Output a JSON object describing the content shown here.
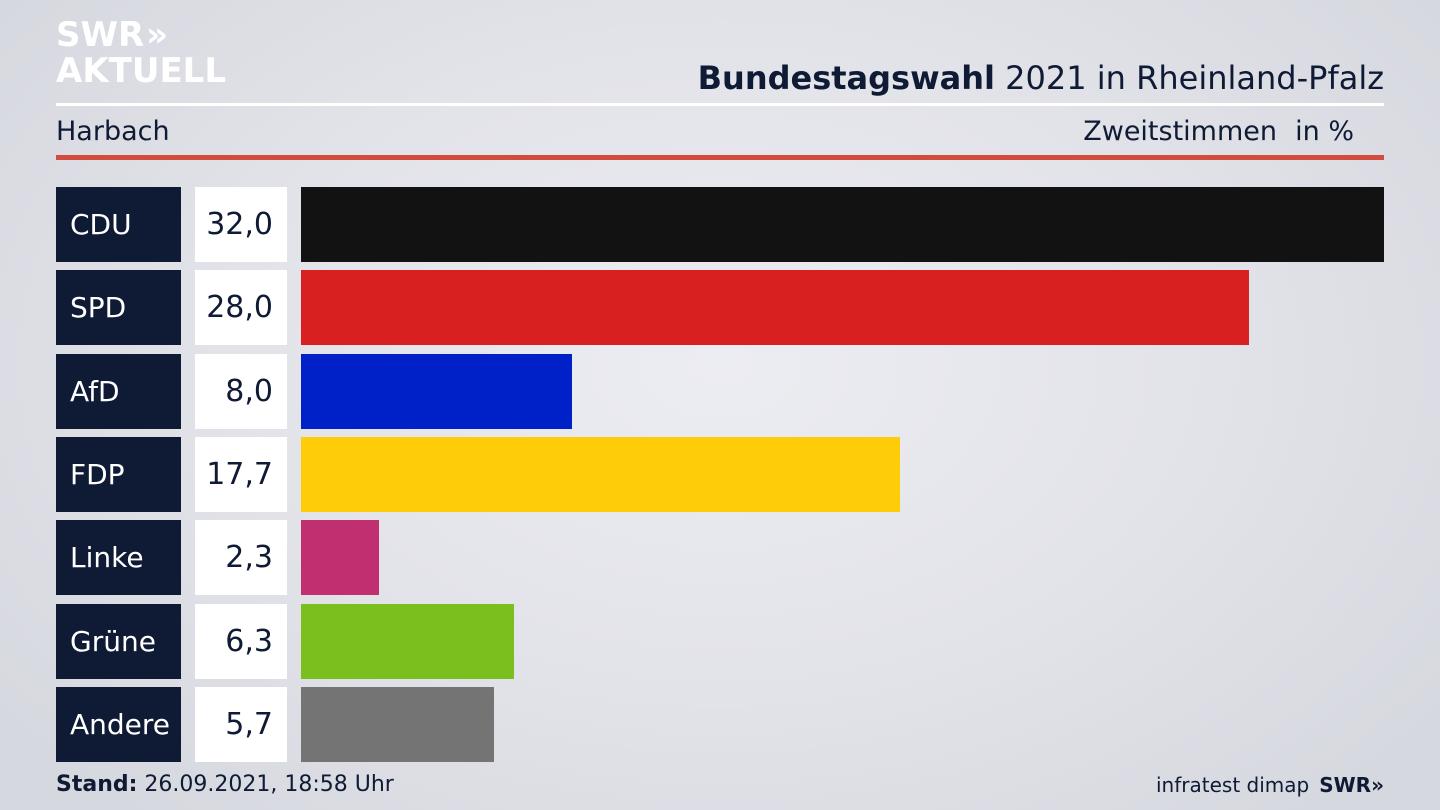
{
  "brand": {
    "logo_line1": "SWR",
    "logo_chevrons": "»",
    "logo_line2": "AKTUELL"
  },
  "header": {
    "title_bold": "Bundestagswahl",
    "title_rest": " 2021 in Rheinland-Pfalz",
    "region": "Harbach",
    "vote_type": "Zweitstimmen",
    "unit": "in %"
  },
  "footer": {
    "stand_label": "Stand:",
    "stand_value": " 26.09.2021, 18:58 Uhr",
    "source": "infratest dimap",
    "swr_mark": "SWR»"
  },
  "colors": {
    "background": "#e6e7ec",
    "label_box": "#0f1a35",
    "accent_line": "#d24b3f"
  },
  "chart_data": {
    "type": "bar",
    "orientation": "horizontal",
    "categories": [
      "CDU",
      "SPD",
      "AfD",
      "FDP",
      "Linke",
      "Grüne",
      "Andere"
    ],
    "values": [
      32.0,
      28.0,
      8.0,
      17.7,
      2.3,
      6.3,
      5.7
    ],
    "value_labels": [
      "32,0",
      "28,0",
      "8,0",
      "17,7",
      "2,3",
      "6,3",
      "5,7"
    ],
    "colors": [
      "#121212",
      "#d92020",
      "#0020c8",
      "#ffcc0a",
      "#c03070",
      "#7abf1e",
      "#747474"
    ],
    "title": "Bundestagswahl 2021 in Rheinland-Pfalz",
    "xlabel": "",
    "ylabel": "",
    "xlim": [
      0,
      32
    ],
    "grid": false,
    "legend": "none"
  }
}
